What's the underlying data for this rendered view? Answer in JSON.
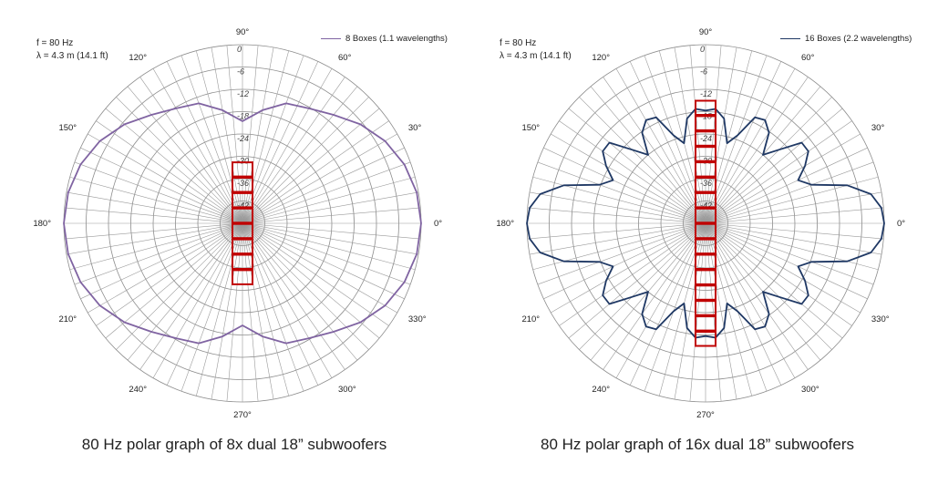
{
  "chart_data": [
    {
      "type": "polar",
      "panel": "left",
      "caption": "80 Hz polar graph of 8x dual 18” subwoofers",
      "info_freq": "f = 80 Hz",
      "info_lambda": "λ = 4.3 m (14.1 ft)",
      "legend": "8  Boxes (1.1 wavelengths)",
      "series_color": "#8064a2",
      "angle_labels": [
        "0°",
        "30°",
        "60°",
        "90°",
        "120°",
        "150°",
        "180°",
        "210°",
        "240°",
        "270°",
        "300°",
        "330°"
      ],
      "radial_ticks": [
        "0",
        "-6",
        "-12",
        "-18",
        "-24",
        "-30",
        "-36",
        "-42"
      ],
      "boxes": 8,
      "r_range_db": [
        -42,
        0
      ],
      "angles_deg": [
        0,
        10,
        20,
        30,
        40,
        50,
        60,
        70,
        80,
        90,
        100,
        110,
        120,
        130,
        140,
        150,
        160,
        170,
        180
      ],
      "values_db": [
        0,
        -0.4,
        -1.5,
        -3.3,
        -5.8,
        -8.7,
        -10.8,
        -12.0,
        -15.0,
        -18.0,
        -15.0,
        -12.0,
        -10.8,
        -8.7,
        -5.8,
        -3.3,
        -1.5,
        -0.4,
        0
      ],
      "symmetry": "mirrored about 0°–180° axis"
    },
    {
      "type": "polar",
      "panel": "right",
      "caption": "80 Hz polar graph of 16x dual 18” subwoofers",
      "info_freq": "f = 80 Hz",
      "info_lambda": "λ = 4.3 m (14.1 ft)",
      "legend": "16  Boxes (2.2 wavelengths)",
      "series_color": "#1f3864",
      "angle_labels": [
        "0°",
        "30°",
        "60°",
        "90°",
        "120°",
        "150°",
        "180°",
        "210°",
        "240°",
        "270°",
        "300°",
        "330°"
      ],
      "radial_ticks": [
        "0",
        "-6",
        "-12",
        "-18",
        "-24",
        "-30",
        "-36",
        "-42"
      ],
      "boxes": 16,
      "r_range_db": [
        -42,
        0
      ],
      "angles_deg": [
        0,
        5,
        10,
        15,
        20,
        25,
        30,
        35,
        40,
        45,
        50,
        55,
        60,
        65,
        70,
        75,
        80,
        85,
        90,
        95,
        100,
        105,
        110,
        115,
        120,
        125,
        130,
        135,
        140,
        145,
        150,
        155,
        160,
        165,
        170,
        175,
        180
      ],
      "values_db": [
        0,
        -0.5,
        -2.5,
        -7.5,
        -15.5,
        -18,
        -15,
        -12.5,
        -12.5,
        -17.5,
        -21,
        -16,
        -14,
        -14.5,
        -20,
        -22.5,
        -17,
        -15,
        -15.5,
        -15,
        -17,
        -22.5,
        -20,
        -14.5,
        -14,
        -16,
        -21,
        -17.5,
        -12.5,
        -12.5,
        -15,
        -18,
        -15.5,
        -7.5,
        -2.5,
        -0.5,
        0
      ],
      "symmetry": "mirrored about 0°–180° axis"
    }
  ]
}
